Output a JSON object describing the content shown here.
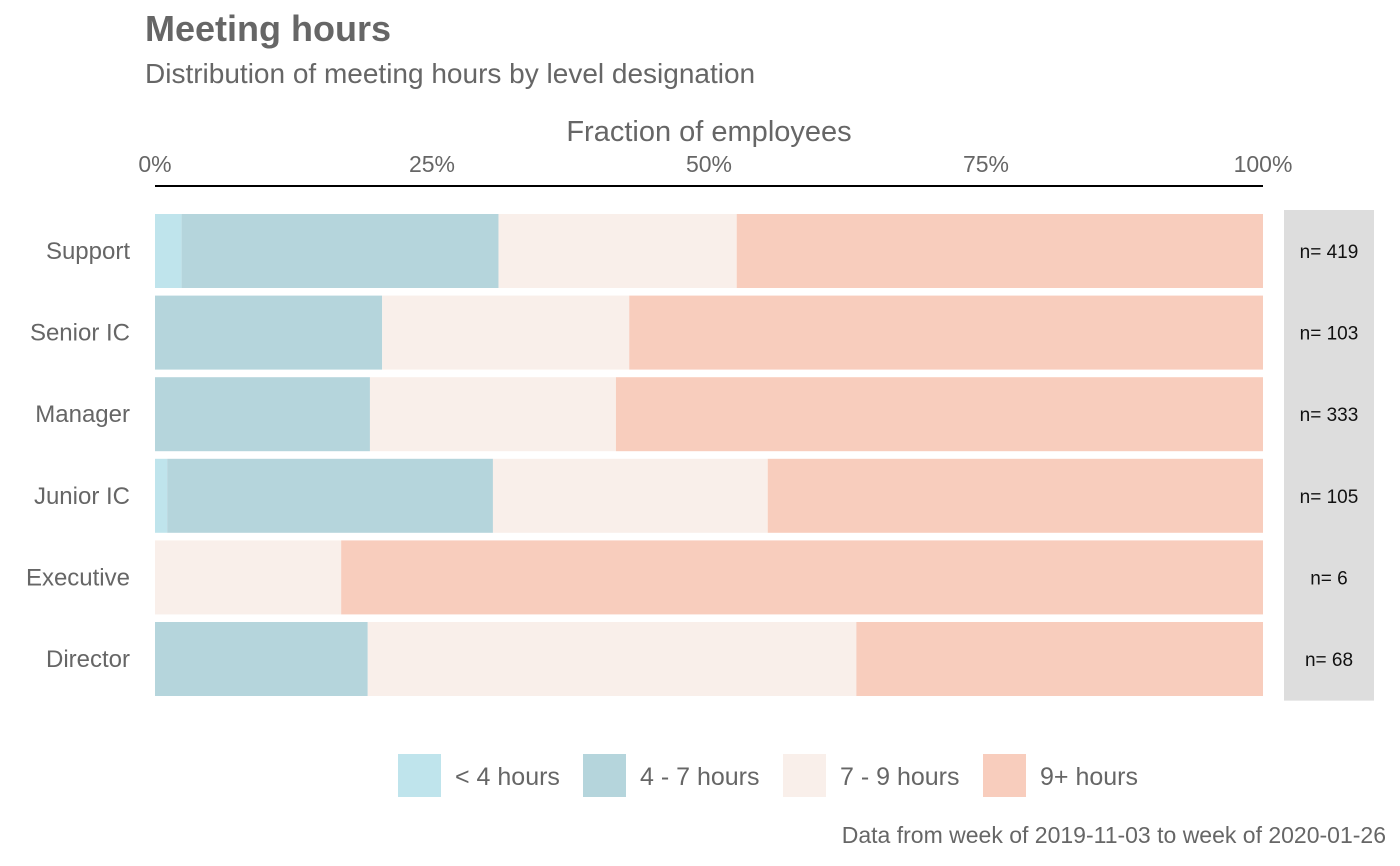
{
  "chart_data": {
    "type": "bar",
    "orientation": "horizontal",
    "stacked": "percent",
    "title": "Meeting hours",
    "subtitle": "Distribution of meeting hours by level designation",
    "xlabel": "Fraction of employees",
    "caption": "Data from week of 2019-11-03 to week of 2020-01-26",
    "x_ticks": [
      "0%",
      "25%",
      "50%",
      "75%",
      "100%"
    ],
    "xlim": [
      0,
      1
    ],
    "axis_position": "top",
    "grid": false,
    "legend_position": "bottom",
    "categories": [
      "Support",
      "Senior IC",
      "Manager",
      "Junior IC",
      "Executive",
      "Director"
    ],
    "counts": [
      "n= 419",
      "n= 103",
      "n= 333",
      "n= 105",
      "n= 6",
      "n= 68"
    ],
    "series": [
      {
        "name": "< 4 hours",
        "color": "#bfe4ec",
        "values": [
          0.024,
          0.0,
          0.0,
          0.011,
          0.0,
          0.0
        ]
      },
      {
        "name": "4 - 7 hours",
        "color": "#b5d5dc",
        "values": [
          0.286,
          0.205,
          0.194,
          0.294,
          0.0,
          0.192
        ]
      },
      {
        "name": "7 - 9 hours",
        "color": "#f9efea",
        "values": [
          0.215,
          0.223,
          0.222,
          0.248,
          0.168,
          0.441
        ]
      },
      {
        "name": "9+ hours",
        "color": "#f8cdbd",
        "values": [
          0.475,
          0.572,
          0.584,
          0.447,
          0.832,
          0.367
        ]
      }
    ]
  }
}
